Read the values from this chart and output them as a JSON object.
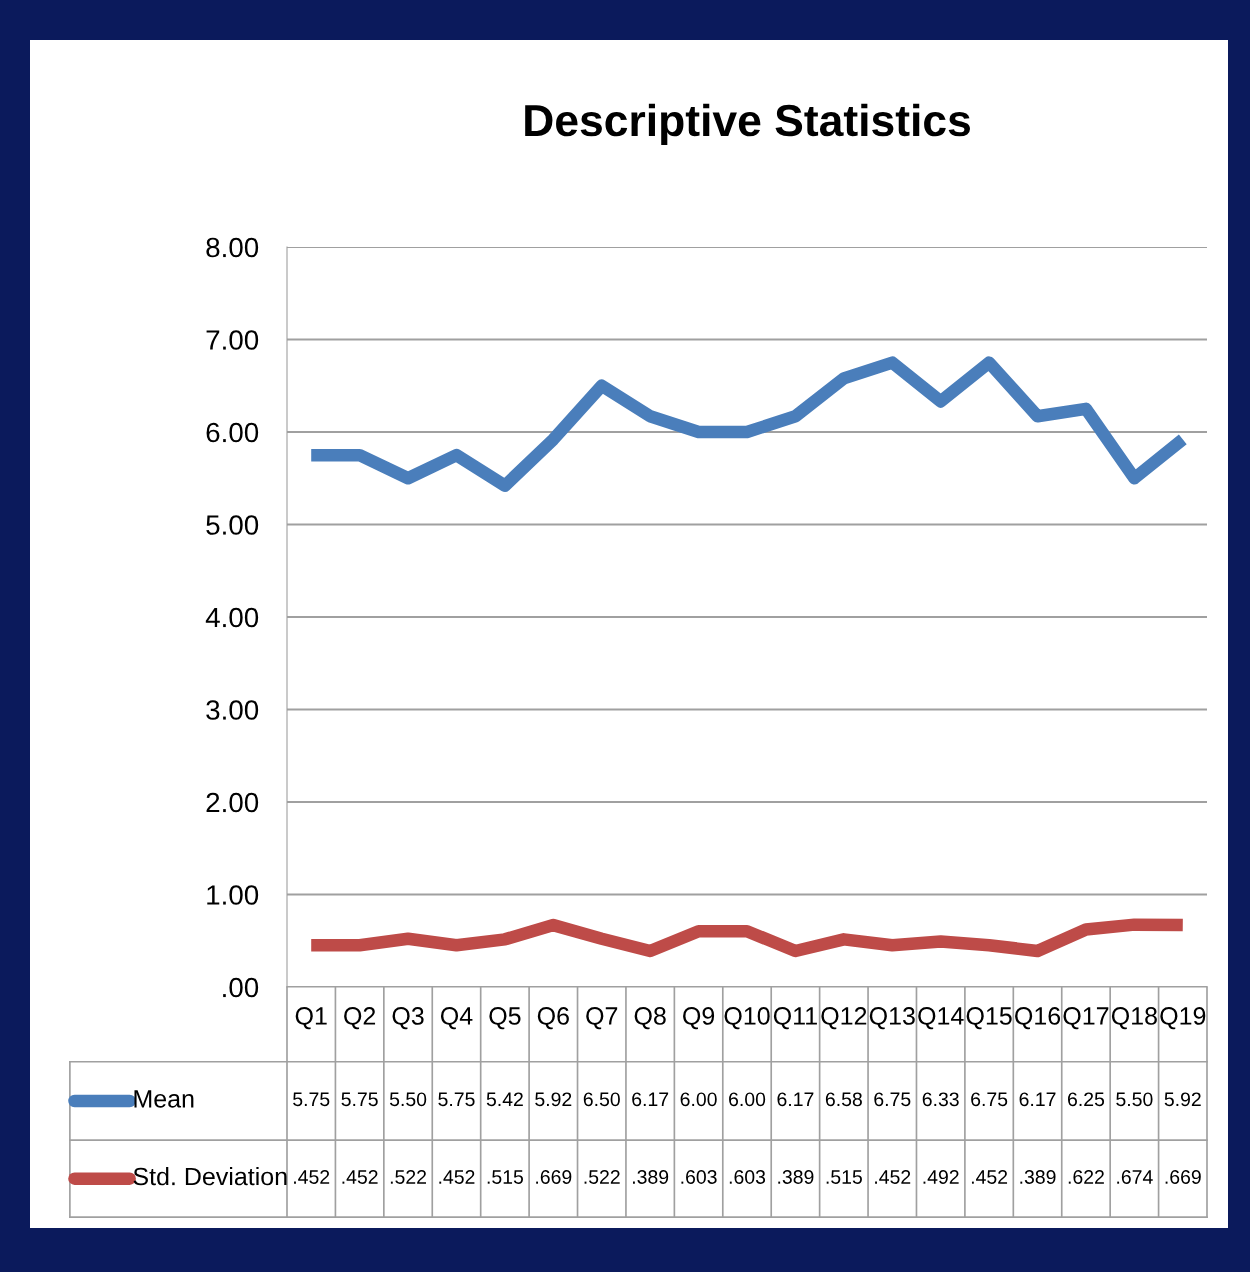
{
  "chart_data": {
    "type": "line",
    "title": "Descriptive Statistics",
    "categories": [
      "Q1",
      "Q2",
      "Q3",
      "Q4",
      "Q5",
      "Q6",
      "Q7",
      "Q8",
      "Q9",
      "Q10",
      "Q11",
      "Q12",
      "Q13",
      "Q14",
      "Q15",
      "Q16",
      "Q17",
      "Q18",
      "Q19"
    ],
    "series": [
      {
        "name": "Mean",
        "color": "#4a7ebb",
        "values": [
          5.75,
          5.75,
          5.5,
          5.75,
          5.42,
          5.92,
          6.5,
          6.17,
          6.0,
          6.0,
          6.17,
          6.58,
          6.75,
          6.33,
          6.75,
          6.17,
          6.25,
          5.5,
          5.92
        ],
        "value_labels": [
          "5.75",
          "5.75",
          "5.50",
          "5.75",
          "5.42",
          "5.92",
          "6.50",
          "6.17",
          "6.00",
          "6.00",
          "6.17",
          "6.58",
          "6.75",
          "6.33",
          "6.75",
          "6.17",
          "6.25",
          "5.50",
          "5.92"
        ]
      },
      {
        "name": "Std. Deviation",
        "color": "#be4b48",
        "values": [
          0.452,
          0.452,
          0.522,
          0.452,
          0.515,
          0.669,
          0.522,
          0.389,
          0.603,
          0.603,
          0.389,
          0.515,
          0.452,
          0.492,
          0.452,
          0.389,
          0.622,
          0.674,
          0.669
        ],
        "value_labels": [
          ".452",
          ".452",
          ".522",
          ".452",
          ".515",
          ".669",
          ".522",
          ".389",
          ".603",
          ".603",
          ".389",
          ".515",
          ".452",
          ".492",
          ".452",
          ".389",
          ".622",
          ".674",
          ".669"
        ]
      }
    ],
    "ylim": [
      0,
      8
    ],
    "yticks": [
      {
        "value": 0,
        "label": ".00"
      },
      {
        "value": 1,
        "label": "1.00"
      },
      {
        "value": 2,
        "label": "2.00"
      },
      {
        "value": 3,
        "label": "3.00"
      },
      {
        "value": 4,
        "label": "4.00"
      },
      {
        "value": 5,
        "label": "5.00"
      },
      {
        "value": 6,
        "label": "6.00"
      },
      {
        "value": 7,
        "label": "7.00"
      },
      {
        "value": 8,
        "label": "8.00"
      }
    ],
    "grid": "y",
    "legend": "bottom",
    "marker": "none",
    "line_style": "solid"
  }
}
